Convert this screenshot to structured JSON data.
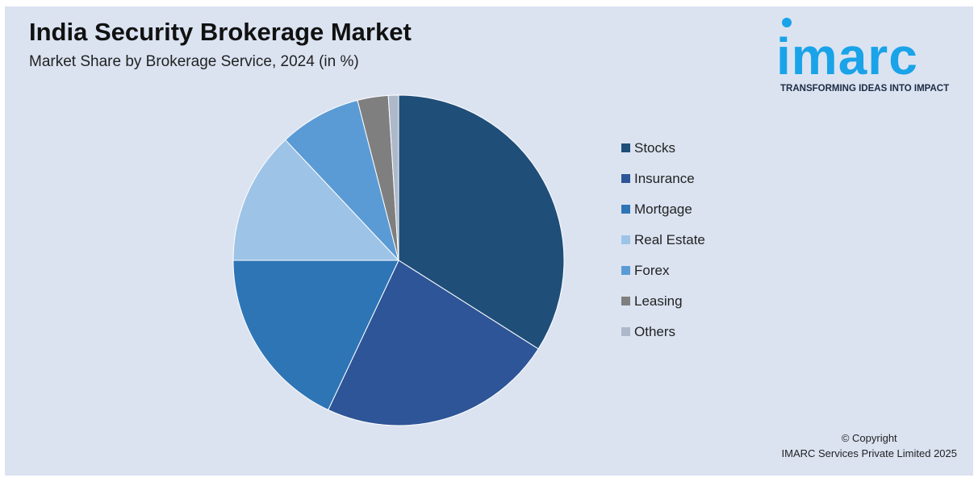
{
  "title": "India Security Brokerage Market",
  "subtitle": "Market Share by Brokerage Service, 2024 (in %)",
  "logo": {
    "text": "imarc",
    "tagline": "TRANSFORMING IDEAS INTO IMPACT",
    "color": "#1aa3e8"
  },
  "copyright": {
    "line1": "© Copyright",
    "line2": "IMARC Services Private Limited 2025"
  },
  "chart_data": {
    "type": "pie",
    "legend_position": "right",
    "categories": [
      "Stocks",
      "Insurance",
      "Mortgage",
      "Real Estate",
      "Forex",
      "Leasing",
      "Others"
    ],
    "values": [
      34,
      23,
      18,
      13,
      8,
      3,
      1
    ],
    "colors": [
      "#1f4e79",
      "#2e5597",
      "#2e75b6",
      "#9dc3e6",
      "#5b9bd5",
      "#7f7f7f",
      "#adb9ca"
    ]
  }
}
